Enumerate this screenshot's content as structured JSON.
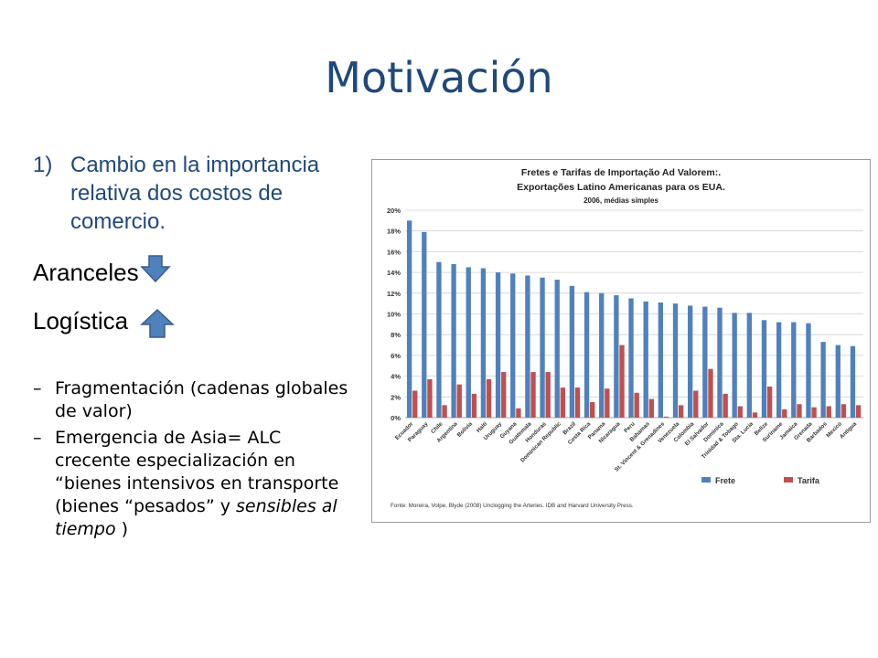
{
  "slide": {
    "title": "Motivación",
    "point1": {
      "number": "1)",
      "text": "Cambio en la importancia relativa dos costos de comercio."
    },
    "aranceles": "Aranceles",
    "logistica": "Logística",
    "bullets": [
      {
        "dash": "–",
        "text": "Fragmentación (cadenas globales de valor)"
      },
      {
        "dash": "–",
        "text_before": "Emergencia de Asia= ALC crecente especialización en “bienes intensivos en transporte (bienes “pesados” y ",
        "italic": "sensibles al tiempo",
        "text_after": " )"
      }
    ],
    "arrow_down_color": "#4f81bd",
    "arrow_up_color": "#4f81bd"
  },
  "chart_data": {
    "type": "bar",
    "title": "Fretes e Tarifas de Importação Ad Valorem:.",
    "subtitle": "Exportações Latino Americanas para os EUA.",
    "subtitle2": "2006, médias simples",
    "source": "Fonte: Moreira, Volpe, Blyde (2008) Unclogging the Arteries. IDB and Harvard University Press.",
    "ylim": [
      0,
      20
    ],
    "yticks": [
      "0%",
      "2%",
      "4%",
      "6%",
      "8%",
      "10%",
      "12%",
      "14%",
      "16%",
      "18%",
      "20%"
    ],
    "grid": true,
    "legend_position": "bottom-right",
    "categories": [
      "Ecuador",
      "Paraguay",
      "Chile",
      "Argentina",
      "Bolivia",
      "Haiti",
      "Uruguay",
      "Guyana",
      "Guatemala",
      "Honduras",
      "Dominican Republic",
      "Brazil",
      "Costa Rica",
      "Panama",
      "Nicaragua",
      "Peru",
      "Bahamas",
      "St. Vincent & Grenadines",
      "Venezuela",
      "Colombia",
      "El Salvador",
      "Dominica",
      "Trinidad & Tobago",
      "Sta. Lucia",
      "Belize",
      "Suriname",
      "Jamaica",
      "Grenada",
      "Barbados",
      "Mexico",
      "Antigua"
    ],
    "series": [
      {
        "name": "Frete",
        "color": "#4f81bd",
        "values": [
          19.0,
          17.9,
          15.0,
          14.8,
          14.5,
          14.4,
          14.0,
          13.9,
          13.7,
          13.5,
          13.3,
          12.7,
          12.1,
          12.0,
          11.8,
          11.5,
          11.2,
          11.1,
          11.0,
          10.8,
          10.7,
          10.6,
          10.1,
          10.1,
          9.4,
          9.2,
          9.2,
          9.1,
          7.3,
          7.0,
          6.9
        ]
      },
      {
        "name": "Tarifa",
        "color": "#c0504d",
        "values": [
          2.6,
          3.7,
          1.2,
          3.2,
          2.3,
          3.7,
          4.4,
          0.9,
          4.4,
          4.4,
          2.9,
          2.9,
          1.5,
          2.8,
          7.0,
          2.4,
          1.8,
          0.1,
          1.2,
          2.6,
          4.7,
          2.3,
          1.1,
          0.5,
          3.0,
          0.8,
          1.3,
          1.0,
          1.1,
          1.3,
          1.2
        ]
      }
    ]
  }
}
